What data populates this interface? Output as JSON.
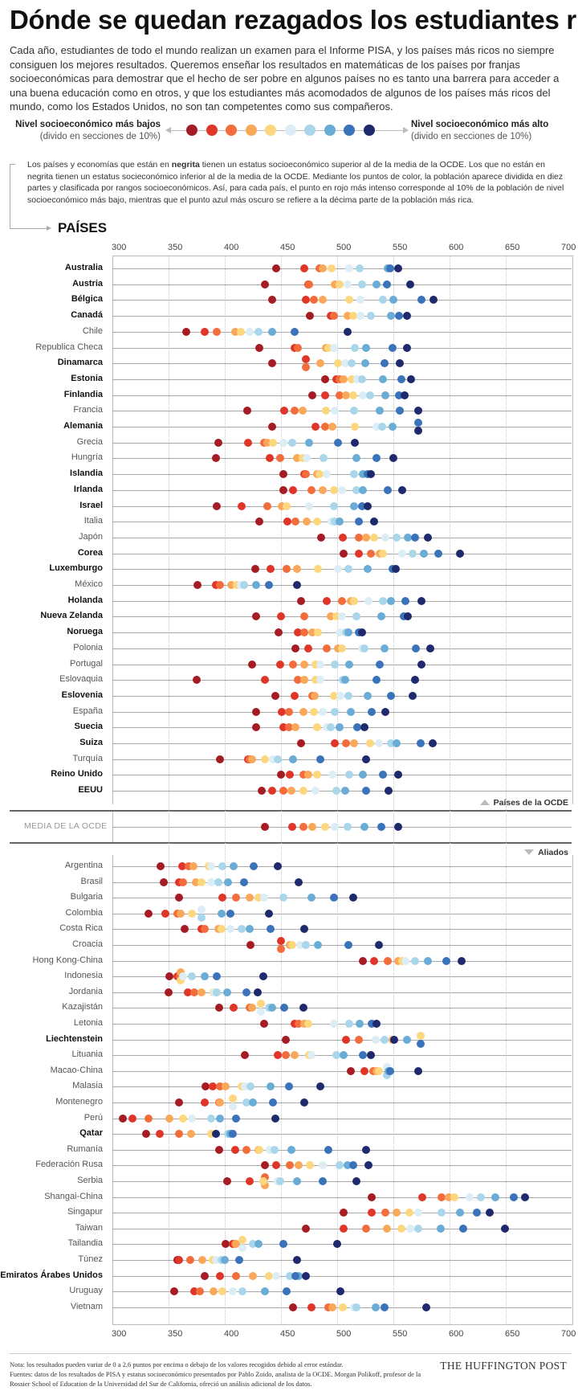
{
  "title": "Dónde se quedan rezagados los estudiantes ricos",
  "intro": "Cada año, estudiantes de todo el mundo realizan un examen para el Informe PISA, y los países más ricos no siempre consiguen los mejores resultados. Queremos enseñar los resultados en matemáticas de los países por franjas socioeconómicas para demostrar que el hecho de ser pobre en algunos países no es tanto una barrera para acceder a una buena educación como en otros, y que los estudiantes más acomodados de algunos de los países más ricos del mundo, como los Estados Unidos, no son tan competentes como sus compañeros.",
  "legend": {
    "left_title": "Nivel socioeconómico más bajos",
    "left_sub": "(divido en secciones de 10%)",
    "right_title": "Nivel socioeconómico más alto",
    "right_sub": "(divido en secciones de 10%)",
    "colors": [
      "#a61c24",
      "#e0362a",
      "#f26c3c",
      "#f9a85a",
      "#fcd77e",
      "#dcedf5",
      "#a9d6ea",
      "#69acd5",
      "#3b73ba",
      "#1f2a6c"
    ]
  },
  "note": {
    "part1": "Los países y economías que están en ",
    "bold": "negrita",
    "part2": " tienen un estatus socioeconómico superior al de la media de la OCDE. Los que no están en negrita tienen un estatus socieconómico inferior al de la media de la OCDE. Mediante los puntos de color, la población aparece dividida en diez partes y clasificada por rangos socioeconómicos. Así, para cada país, el punto en rojo más intenso corresponde al 10% de la población de nivel socioeconómico más bajo, mientras que el punto azul más oscuro se refiere a la décima parte de la población más rica."
  },
  "section_header": "PAÍSES",
  "oecd_group_label": "Países de la OCDE",
  "allies_group_label": "Aliados",
  "oecd_average_label": "MEDIA DE LA OCDE",
  "footer": {
    "note": "Nota: los resultados pueden variar de 0 a 2,6 puntos por encima o debajo de los valores recogidos debido al error estándar.",
    "sources": "Fuentes: datos de los resultados de PISA y estatus socioeconómico presentados por Pablo Zoido, analista de la OCDE. Morgan Polikoff, profesor de la Rossier School of Education de la Universidad del Sur de California, ofreció un análisis adicional de los datos.",
    "brand": "THE HUFFINGTON POST"
  },
  "chart_data": {
    "type": "scatter",
    "subtype": "dot-plot",
    "xlim": [
      300,
      700
    ],
    "xticks": [
      "300",
      "350",
      "400",
      "450",
      "500",
      "550",
      "600",
      "650",
      "700"
    ],
    "series_names": [
      "Decil 1",
      "Decil 2",
      "Decil 3",
      "Decil 4",
      "Decil 5",
      "Decil 6",
      "Decil 7",
      "Decil 8",
      "Decil 9",
      "Decil 10"
    ],
    "grid": true,
    "oecd": [
      {
        "name": "Australia",
        "bold": true,
        "values": [
          446,
          471,
          484,
          487,
          495,
          511,
          520,
          545,
          547,
          554
        ]
      },
      {
        "name": "Austria",
        "bold": true,
        "values": [
          436,
          474,
          475,
          498,
          502,
          509,
          522,
          535,
          544,
          565
        ]
      },
      {
        "name": "Bélgica",
        "bold": true,
        "values": [
          442,
          472,
          479,
          487,
          511,
          521,
          541,
          550,
          575,
          586
        ]
      },
      {
        "name": "Canadá",
        "bold": true,
        "values": [
          476,
          494,
          497,
          509,
          514,
          521,
          530,
          548,
          555,
          562
        ]
      },
      {
        "name": "Chile",
        "bold": false,
        "values": [
          366,
          382,
          393,
          409,
          414,
          422,
          430,
          442,
          462,
          509
        ]
      },
      {
        "name": "Republica Checa",
        "bold": false,
        "values": [
          431,
          462,
          465,
          490,
          492,
          497,
          516,
          526,
          549,
          562
        ]
      },
      {
        "name": "Dinamarca",
        "bold": true,
        "values": [
          442,
          472,
          472,
          485,
          501,
          507,
          513,
          525,
          542,
          556
        ]
      },
      {
        "name": "Estonia",
        "bold": true,
        "values": [
          489,
          499,
          502,
          506,
          513,
          518,
          522,
          541,
          557,
          566
        ]
      },
      {
        "name": "Finlandia",
        "bold": true,
        "values": [
          478,
          489,
          502,
          508,
          514,
          523,
          529,
          543,
          555,
          560
        ]
      },
      {
        "name": "Francia",
        "bold": false,
        "values": [
          420,
          453,
          462,
          469,
          490,
          498,
          515,
          538,
          556,
          572
        ]
      },
      {
        "name": "Alemania",
        "bold": true,
        "values": [
          442,
          481,
          489,
          496,
          516,
          535,
          540,
          549,
          572,
          572
        ]
      },
      {
        "name": "Grecia",
        "bold": false,
        "values": [
          394,
          421,
          435,
          438,
          443,
          452,
          460,
          475,
          501,
          516
        ]
      },
      {
        "name": "Hungría",
        "bold": false,
        "values": [
          392,
          440,
          449,
          464,
          469,
          473,
          488,
          517,
          535,
          550
        ]
      },
      {
        "name": "Islandia",
        "bold": true,
        "values": [
          452,
          471,
          472,
          482,
          484,
          491,
          515,
          523,
          527,
          530
        ]
      },
      {
        "name": "Irlanda",
        "bold": true,
        "values": [
          452,
          461,
          477,
          487,
          497,
          504,
          517,
          523,
          545,
          558
        ]
      },
      {
        "name": "Israel",
        "bold": true,
        "values": [
          393,
          415,
          438,
          451,
          455,
          475,
          497,
          515,
          522,
          527
        ]
      },
      {
        "name": "Italia",
        "bold": false,
        "values": [
          431,
          456,
          463,
          473,
          482,
          495,
          498,
          502,
          519,
          533
        ]
      },
      {
        "name": "Japón",
        "bold": false,
        "values": [
          486,
          505,
          519,
          526,
          533,
          543,
          553,
          563,
          569,
          581
        ]
      },
      {
        "name": "Corea",
        "bold": true,
        "values": [
          506,
          519,
          530,
          538,
          541,
          558,
          567,
          577,
          590,
          609
        ]
      },
      {
        "name": "Luxemburgo",
        "bold": true,
        "values": [
          427,
          441,
          455,
          464,
          483,
          501,
          510,
          527,
          549,
          552
        ]
      },
      {
        "name": "México",
        "bold": false,
        "values": [
          376,
          392,
          396,
          406,
          411,
          414,
          417,
          428,
          439,
          464
        ]
      },
      {
        "name": "Holanda",
        "bold": true,
        "values": [
          468,
          491,
          504,
          512,
          515,
          528,
          541,
          548,
          561,
          575
        ]
      },
      {
        "name": "Nueva Zelanda",
        "bold": true,
        "values": [
          428,
          450,
          471,
          494,
          499,
          504,
          517,
          539,
          559,
          563
        ]
      },
      {
        "name": "Noruega",
        "bold": true,
        "values": [
          448,
          465,
          471,
          478,
          483,
          502,
          508,
          510,
          519,
          522
        ]
      },
      {
        "name": "Polonia",
        "bold": false,
        "values": [
          463,
          474,
          491,
          501,
          504,
          522,
          524,
          542,
          570,
          583
        ]
      },
      {
        "name": "Portugal",
        "bold": false,
        "values": [
          424,
          449,
          461,
          471,
          481,
          485,
          498,
          511,
          538,
          575
        ]
      },
      {
        "name": "Eslovaquia",
        "bold": false,
        "values": [
          375,
          436,
          465,
          471,
          481,
          485,
          505,
          507,
          535,
          569
        ]
      },
      {
        "name": "Eslovenia",
        "bold": true,
        "values": [
          445,
          462,
          478,
          480,
          497,
          503,
          510,
          527,
          548,
          567
        ]
      },
      {
        "name": "España",
        "bold": false,
        "values": [
          428,
          451,
          457,
          470,
          479,
          487,
          498,
          512,
          531,
          543
        ]
      },
      {
        "name": "Suecia",
        "bold": true,
        "values": [
          428,
          452,
          457,
          463,
          482,
          491,
          494,
          502,
          518,
          524
        ]
      },
      {
        "name": "Suiza",
        "bold": true,
        "values": [
          468,
          498,
          508,
          515,
          529,
          537,
          548,
          553,
          574,
          585
        ]
      },
      {
        "name": "Turquía",
        "bold": false,
        "values": [
          396,
          421,
          422,
          424,
          436,
          443,
          447,
          461,
          485,
          526
        ]
      },
      {
        "name": "Reino Unido",
        "bold": true,
        "values": [
          450,
          458,
          470,
          474,
          482,
          496,
          511,
          523,
          541,
          554
        ]
      },
      {
        "name": "EEUU",
        "bold": true,
        "values": [
          433,
          442,
          452,
          459,
          470,
          481,
          499,
          507,
          526,
          546
        ]
      }
    ],
    "oecd_average": {
      "values": [
        436,
        460,
        470,
        478,
        489,
        498,
        509,
        524,
        539,
        554
      ]
    },
    "allies": [
      {
        "name": "Argentina",
        "bold": false,
        "values": [
          343,
          362,
          368,
          372,
          386,
          388,
          398,
          408,
          426,
          447
        ]
      },
      {
        "name": "Brasil",
        "bold": false,
        "values": [
          346,
          359,
          363,
          374,
          379,
          388,
          394,
          403,
          417,
          466
        ]
      },
      {
        "name": "Bulgaria",
        "bold": false,
        "values": [
          359,
          398,
          410,
          422,
          430,
          435,
          452,
          477,
          497,
          514
        ]
      },
      {
        "name": "Colombia",
        "bold": false,
        "values": [
          332,
          347,
          358,
          361,
          371,
          379,
          379,
          397,
          405,
          439
        ]
      },
      {
        "name": "Costa Rica",
        "bold": false,
        "values": [
          364,
          379,
          382,
          394,
          397,
          405,
          415,
          422,
          441,
          471
        ]
      },
      {
        "name": "Croacia",
        "bold": false,
        "values": [
          423,
          450,
          450,
          458,
          460,
          467,
          472,
          483,
          510,
          537
        ]
      },
      {
        "name": "Hong Kong-China",
        "bold": false,
        "values": [
          523,
          533,
          545,
          554,
          558,
          561,
          569,
          581,
          597,
          611
        ]
      },
      {
        "name": "Indonesia",
        "bold": false,
        "values": [
          351,
          358,
          360,
          361,
          361,
          363,
          371,
          382,
          393,
          434
        ]
      },
      {
        "name": "Jordania",
        "bold": false,
        "values": [
          350,
          367,
          373,
          379,
          390,
          391,
          393,
          402,
          419,
          429
        ]
      },
      {
        "name": "Kazajistán",
        "bold": false,
        "values": [
          395,
          408,
          422,
          424,
          432,
          432,
          439,
          442,
          453,
          470
        ]
      },
      {
        "name": "Letonia",
        "bold": false,
        "values": [
          435,
          462,
          466,
          471,
          474,
          497,
          511,
          520,
          531,
          535
        ]
      },
      {
        "name": "Liechtenstein",
        "bold": true,
        "values": [
          454,
          508,
          519,
          549,
          574,
          534,
          542,
          562,
          574,
          551
        ]
      },
      {
        "name": "Lituania",
        "bold": false,
        "values": [
          418,
          447,
          454,
          462,
          475,
          477,
          499,
          506,
          523,
          530
        ]
      },
      {
        "name": "Macao-China",
        "bold": false,
        "values": [
          512,
          524,
          532,
          535,
          537,
          544,
          544,
          546,
          547,
          572
        ]
      },
      {
        "name": "Malasia",
        "bold": false,
        "values": [
          383,
          389,
          396,
          401,
          415,
          418,
          423,
          441,
          457,
          485
        ]
      },
      {
        "name": "Montenegro",
        "bold": false,
        "values": [
          359,
          382,
          395,
          396,
          407,
          407,
          419,
          425,
          443,
          471
        ]
      },
      {
        "name": "Perú",
        "bold": false,
        "values": [
          309,
          318,
          332,
          351,
          363,
          371,
          388,
          396,
          410,
          445
        ]
      },
      {
        "name": "Qatar",
        "bold": true,
        "values": [
          330,
          342,
          359,
          370,
          388,
          393,
          403,
          405,
          407,
          392
        ]
      },
      {
        "name": "Rumanía",
        "bold": false,
        "values": [
          395,
          409,
          419,
          430,
          431,
          440,
          444,
          459,
          492,
          526
        ]
      },
      {
        "name": "Federación Rusa",
        "bold": false,
        "values": [
          436,
          446,
          458,
          466,
          476,
          487,
          502,
          509,
          514,
          528
        ]
      },
      {
        "name": "Serbia",
        "bold": false,
        "values": [
          402,
          422,
          436,
          436,
          434,
          447,
          449,
          464,
          487,
          517
        ]
      },
      {
        "name": "Shangai-China",
        "bold": false,
        "values": [
          531,
          576,
          593,
          599,
          604,
          618,
          628,
          641,
          657,
          667
        ]
      },
      {
        "name": "Singapur",
        "bold": false,
        "values": [
          506,
          531,
          543,
          553,
          564,
          572,
          593,
          609,
          624,
          636
        ]
      },
      {
        "name": "Taiwan",
        "bold": false,
        "values": [
          472,
          506,
          526,
          544,
          557,
          565,
          572,
          592,
          612,
          649
        ]
      },
      {
        "name": "Tailandia",
        "bold": false,
        "values": [
          401,
          407,
          409,
          410,
          416,
          416,
          425,
          430,
          452,
          500
        ]
      },
      {
        "name": "Túnez",
        "bold": false,
        "values": [
          358,
          359,
          369,
          380,
          389,
          392,
          397,
          400,
          413,
          464
        ]
      },
      {
        "name": "Emiratos Árabes Unidos",
        "bold": true,
        "values": [
          382,
          396,
          410,
          425,
          439,
          446,
          458,
          466,
          463,
          472
        ]
      },
      {
        "name": "Uruguay",
        "bold": false,
        "values": [
          355,
          373,
          378,
          390,
          398,
          407,
          416,
          436,
          455,
          503
        ]
      },
      {
        "name": "Vietnam",
        "bold": false,
        "values": [
          461,
          477,
          492,
          496,
          505,
          515,
          517,
          534,
          542,
          579
        ]
      }
    ]
  }
}
